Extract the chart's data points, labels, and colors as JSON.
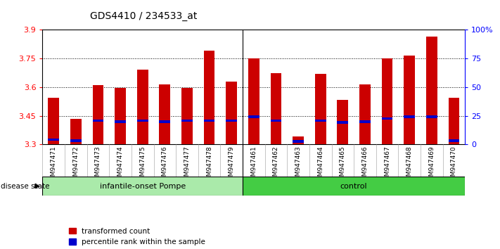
{
  "title": "GDS4410 / 234533_at",
  "samples": [
    "GSM947471",
    "GSM947472",
    "GSM947473",
    "GSM947474",
    "GSM947475",
    "GSM947476",
    "GSM947477",
    "GSM947478",
    "GSM947479",
    "GSM947461",
    "GSM947462",
    "GSM947463",
    "GSM947464",
    "GSM947465",
    "GSM947466",
    "GSM947467",
    "GSM947468",
    "GSM947469",
    "GSM947470"
  ],
  "red_values": [
    3.545,
    3.435,
    3.61,
    3.595,
    3.69,
    3.615,
    3.595,
    3.79,
    3.63,
    3.75,
    3.675,
    3.34,
    3.67,
    3.535,
    3.615,
    3.75,
    3.765,
    3.865,
    3.545
  ],
  "blue_values": [
    3.325,
    3.32,
    3.425,
    3.42,
    3.425,
    3.42,
    3.425,
    3.425,
    3.425,
    3.445,
    3.425,
    3.315,
    3.425,
    3.415,
    3.42,
    3.435,
    3.445,
    3.445,
    3.32
  ],
  "ymin": 3.3,
  "ymax": 3.9,
  "yticks": [
    3.3,
    3.45,
    3.6,
    3.75,
    3.9
  ],
  "ytick_labels": [
    "3.3",
    "3.45",
    "3.6",
    "3.75",
    "3.9"
  ],
  "y2ticks": [
    0,
    25,
    50,
    75,
    100
  ],
  "y2labels": [
    "0",
    "25",
    "50",
    "75",
    "100%"
  ],
  "grid_lines": [
    3.45,
    3.6,
    3.75
  ],
  "bar_color": "#CC0000",
  "blue_color": "#0000CC",
  "bar_width": 0.5,
  "group1_count": 9,
  "group1_label": "infantile-onset Pompe",
  "group2_label": "control",
  "group1_color": "#AAEAAA",
  "group2_color": "#44CC44",
  "group_label_text": "disease state",
  "legend_red": "transformed count",
  "legend_blue": "percentile rank within the sample",
  "title_fontsize": 10,
  "tick_label_fontsize": 6.5,
  "axis_fontsize": 8,
  "tick_bg_color": "#D8D8D8"
}
